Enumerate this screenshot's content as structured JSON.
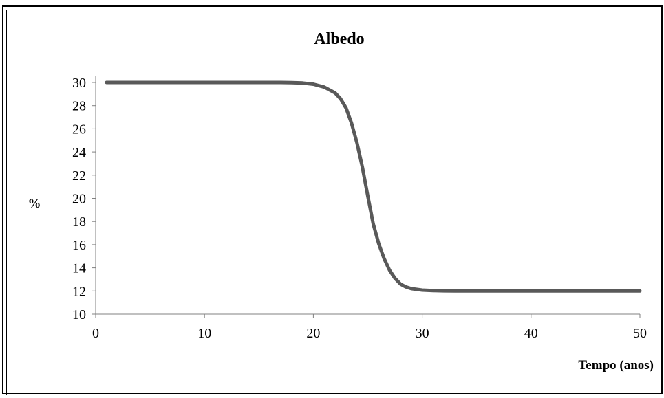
{
  "chart_data": {
    "type": "line",
    "title": "Albedo",
    "xlabel": "Tempo (anos)",
    "ylabel": "%",
    "xlim": [
      0,
      50
    ],
    "ylim": [
      10,
      30
    ],
    "x_ticks": [
      0,
      10,
      20,
      30,
      40,
      50
    ],
    "y_ticks": [
      10,
      12,
      14,
      16,
      18,
      20,
      22,
      24,
      26,
      28,
      30
    ],
    "grid": false,
    "legend": "none",
    "series": [
      {
        "color": "#595959",
        "x": [
          1,
          5,
          10,
          15,
          17,
          18,
          19,
          20,
          21,
          22,
          22.5,
          23,
          23.5,
          24,
          24.5,
          25,
          25.5,
          26,
          26.5,
          27,
          27.5,
          28,
          28.5,
          29,
          30,
          31,
          32,
          33,
          35,
          40,
          45,
          50
        ],
        "y": [
          30,
          30,
          30,
          30,
          30,
          29.98,
          29.95,
          29.85,
          29.6,
          29.1,
          28.6,
          27.8,
          26.5,
          24.8,
          22.7,
          20.2,
          17.8,
          16.1,
          14.8,
          13.8,
          13.1,
          12.6,
          12.35,
          12.2,
          12.08,
          12.03,
          12.01,
          12,
          12,
          12,
          12,
          12
        ]
      }
    ]
  }
}
